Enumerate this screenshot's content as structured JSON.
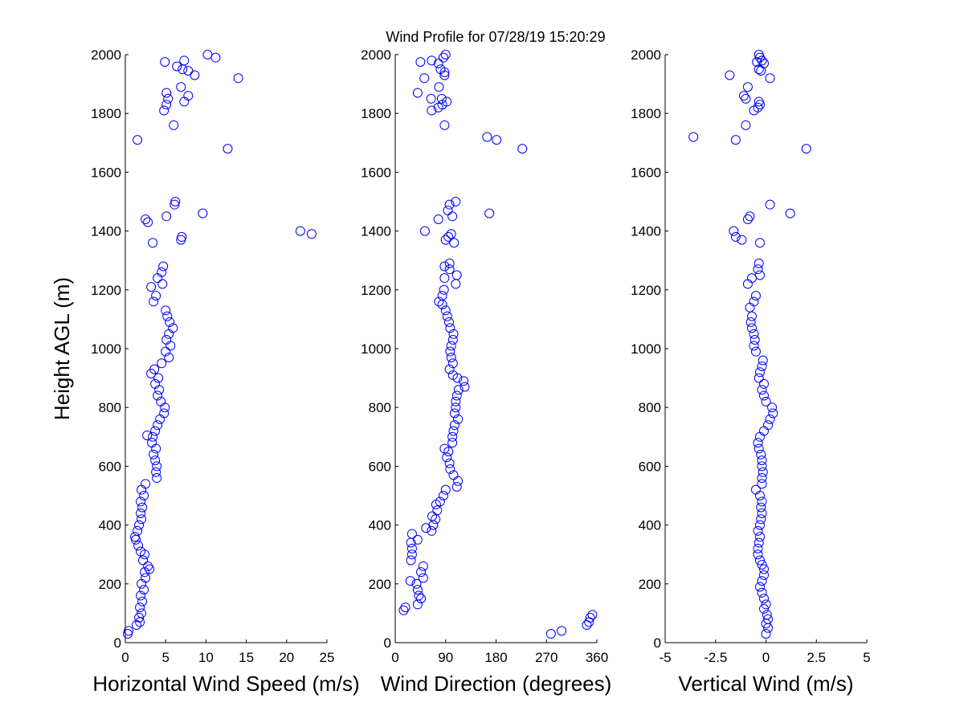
{
  "figure": {
    "title": "Wind Profile for  07/28/19 15:20:29",
    "marker_color": "#0000ff"
  },
  "chart_data": [
    {
      "type": "scatter",
      "id": "speed",
      "xlabel": "Horizontal Wind Speed (m/s)",
      "ylabel": "Height AGL (m)",
      "xlim": [
        0,
        25
      ],
      "ylim": [
        0,
        2000
      ],
      "xticks": [
        0,
        5,
        10,
        15,
        20,
        25
      ],
      "xtick_labels": [
        "0",
        "5",
        "10",
        "15",
        "20",
        "25"
      ],
      "yticks": [
        0,
        200,
        400,
        600,
        800,
        1000,
        1200,
        1400,
        1600,
        1800,
        2000
      ],
      "ytick_labels": [
        "0",
        "200",
        "400",
        "600",
        "800",
        "1000",
        "1200",
        "1400",
        "1600",
        "1800",
        "2000"
      ],
      "grid": false,
      "points": [
        [
          0.3,
          30
        ],
        [
          0.4,
          40
        ],
        [
          1.4,
          60
        ],
        [
          1.8,
          70
        ],
        [
          1.7,
          85
        ],
        [
          2.0,
          100
        ],
        [
          1.8,
          120
        ],
        [
          2.1,
          140
        ],
        [
          1.9,
          160
        ],
        [
          2.3,
          180
        ],
        [
          2.0,
          200
        ],
        [
          2.5,
          220
        ],
        [
          2.4,
          240
        ],
        [
          3.0,
          250
        ],
        [
          2.8,
          260
        ],
        [
          2.2,
          280
        ],
        [
          2.4,
          300
        ],
        [
          1.9,
          310
        ],
        [
          1.6,
          330
        ],
        [
          1.3,
          350
        ],
        [
          1.2,
          360
        ],
        [
          1.5,
          380
        ],
        [
          1.7,
          400
        ],
        [
          2.0,
          420
        ],
        [
          1.9,
          440
        ],
        [
          2.1,
          460
        ],
        [
          1.9,
          480
        ],
        [
          2.3,
          500
        ],
        [
          2.0,
          520
        ],
        [
          2.5,
          540
        ],
        [
          3.9,
          560
        ],
        [
          3.8,
          580
        ],
        [
          3.9,
          600
        ],
        [
          3.7,
          620
        ],
        [
          3.5,
          640
        ],
        [
          3.8,
          660
        ],
        [
          3.3,
          680
        ],
        [
          3.4,
          700
        ],
        [
          2.7,
          705
        ],
        [
          3.7,
          720
        ],
        [
          4.0,
          740
        ],
        [
          4.3,
          760
        ],
        [
          4.8,
          780
        ],
        [
          4.9,
          800
        ],
        [
          4.4,
          820
        ],
        [
          4.0,
          840
        ],
        [
          4.2,
          860
        ],
        [
          3.7,
          880
        ],
        [
          4.1,
          900
        ],
        [
          3.2,
          915
        ],
        [
          3.6,
          930
        ],
        [
          4.5,
          950
        ],
        [
          5.4,
          970
        ],
        [
          5.0,
          990
        ],
        [
          5.6,
          1010
        ],
        [
          5.1,
          1030
        ],
        [
          5.4,
          1050
        ],
        [
          5.9,
          1070
        ],
        [
          5.5,
          1090
        ],
        [
          5.2,
          1110
        ],
        [
          5.0,
          1130
        ],
        [
          3.5,
          1160
        ],
        [
          3.8,
          1180
        ],
        [
          3.2,
          1210
        ],
        [
          4.6,
          1220
        ],
        [
          4.0,
          1240
        ],
        [
          4.5,
          1260
        ],
        [
          4.7,
          1280
        ],
        [
          3.4,
          1360
        ],
        [
          6.9,
          1370
        ],
        [
          7.0,
          1380
        ],
        [
          21.7,
          1400
        ],
        [
          23.1,
          1390
        ],
        [
          2.5,
          1440
        ],
        [
          2.8,
          1430
        ],
        [
          5.1,
          1450
        ],
        [
          9.6,
          1460
        ],
        [
          6.1,
          1490
        ],
        [
          6.2,
          1500
        ],
        [
          12.7,
          1680
        ],
        [
          1.5,
          1710
        ],
        [
          6.0,
          1760
        ],
        [
          4.8,
          1810
        ],
        [
          5.1,
          1830
        ],
        [
          7.3,
          1840
        ],
        [
          5.3,
          1850
        ],
        [
          7.8,
          1860
        ],
        [
          5.1,
          1870
        ],
        [
          6.9,
          1890
        ],
        [
          14.0,
          1920
        ],
        [
          8.6,
          1930
        ],
        [
          6.4,
          1960
        ],
        [
          7.8,
          1945
        ],
        [
          7.1,
          1950
        ],
        [
          4.9,
          1975
        ],
        [
          7.3,
          1980
        ],
        [
          10.2,
          2000
        ],
        [
          11.2,
          1990
        ]
      ]
    },
    {
      "type": "scatter",
      "id": "direction",
      "xlabel": "Wind Direction (degrees)",
      "ylabel": "",
      "xlim": [
        0,
        360
      ],
      "ylim": [
        0,
        2000
      ],
      "xticks": [
        0,
        90,
        180,
        270,
        360
      ],
      "xtick_labels": [
        "0",
        "90",
        "180",
        "270",
        "360"
      ],
      "yticks": [
        0,
        200,
        400,
        600,
        800,
        1000,
        1200,
        1400,
        1600,
        1800,
        2000
      ],
      "ytick_labels": [
        "0",
        "200",
        "400",
        "600",
        "800",
        "1000",
        "1200",
        "1400",
        "1600",
        "1800",
        "2000"
      ],
      "grid": false,
      "points": [
        [
          278,
          30
        ],
        [
          297,
          40
        ],
        [
          342,
          60
        ],
        [
          346,
          70
        ],
        [
          348,
          85
        ],
        [
          352,
          95
        ],
        [
          15,
          110
        ],
        [
          18,
          120
        ],
        [
          40,
          130
        ],
        [
          46,
          150
        ],
        [
          42,
          160
        ],
        [
          40,
          180
        ],
        [
          38,
          200
        ],
        [
          27,
          210
        ],
        [
          50,
          220
        ],
        [
          46,
          240
        ],
        [
          50,
          260
        ],
        [
          28,
          280
        ],
        [
          30,
          300
        ],
        [
          30,
          320
        ],
        [
          28,
          340
        ],
        [
          40,
          350
        ],
        [
          30,
          370
        ],
        [
          55,
          390
        ],
        [
          65,
          380
        ],
        [
          68,
          400
        ],
        [
          72,
          420
        ],
        [
          66,
          430
        ],
        [
          75,
          450
        ],
        [
          73,
          470
        ],
        [
          80,
          480
        ],
        [
          86,
          500
        ],
        [
          90,
          520
        ],
        [
          110,
          530
        ],
        [
          112,
          550
        ],
        [
          104,
          570
        ],
        [
          98,
          590
        ],
        [
          97,
          610
        ],
        [
          92,
          630
        ],
        [
          95,
          650
        ],
        [
          88,
          660
        ],
        [
          102,
          680
        ],
        [
          102,
          700
        ],
        [
          104,
          720
        ],
        [
          106,
          740
        ],
        [
          112,
          760
        ],
        [
          106,
          780
        ],
        [
          108,
          800
        ],
        [
          108,
          820
        ],
        [
          110,
          840
        ],
        [
          113,
          860
        ],
        [
          124,
          870
        ],
        [
          122,
          890
        ],
        [
          111,
          900
        ],
        [
          103,
          910
        ],
        [
          97,
          930
        ],
        [
          103,
          950
        ],
        [
          100,
          970
        ],
        [
          98,
          990
        ],
        [
          100,
          1010
        ],
        [
          103,
          1030
        ],
        [
          104,
          1050
        ],
        [
          98,
          1070
        ],
        [
          96,
          1090
        ],
        [
          93,
          1110
        ],
        [
          90,
          1130
        ],
        [
          84,
          1150
        ],
        [
          78,
          1160
        ],
        [
          84,
          1180
        ],
        [
          87,
          1200
        ],
        [
          108,
          1220
        ],
        [
          88,
          1240
        ],
        [
          110,
          1250
        ],
        [
          97,
          1270
        ],
        [
          88,
          1280
        ],
        [
          97,
          1290
        ],
        [
          105,
          1360
        ],
        [
          90,
          1370
        ],
        [
          95,
          1380
        ],
        [
          100,
          1390
        ],
        [
          53,
          1400
        ],
        [
          77,
          1440
        ],
        [
          102,
          1450
        ],
        [
          94,
          1470
        ],
        [
          97,
          1490
        ],
        [
          108,
          1500
        ],
        [
          168,
          1460
        ],
        [
          164,
          1720
        ],
        [
          181,
          1710
        ],
        [
          227,
          1680
        ],
        [
          88,
          1760
        ],
        [
          65,
          1810
        ],
        [
          77,
          1820
        ],
        [
          84,
          1830
        ],
        [
          92,
          1840
        ],
        [
          83,
          1850
        ],
        [
          64,
          1850
        ],
        [
          40,
          1870
        ],
        [
          78,
          1890
        ],
        [
          52,
          1920
        ],
        [
          88,
          1930
        ],
        [
          88,
          1940
        ],
        [
          81,
          1950
        ],
        [
          77,
          1970
        ],
        [
          45,
          1975
        ],
        [
          65,
          1980
        ],
        [
          86,
          1990
        ],
        [
          90,
          2000
        ]
      ]
    },
    {
      "type": "scatter",
      "id": "vertical",
      "xlabel": "Vertical Wind (m/s)",
      "ylabel": "",
      "xlim": [
        -5,
        5
      ],
      "ylim": [
        0,
        2000
      ],
      "xticks": [
        -5,
        -2.5,
        0,
        2.5,
        5
      ],
      "xtick_labels": [
        "-5",
        "-2.5",
        "0",
        "2.5",
        "5"
      ],
      "yticks": [
        0,
        200,
        400,
        600,
        800,
        1000,
        1200,
        1400,
        1600,
        1800,
        2000
      ],
      "ytick_labels": [
        "0",
        "200",
        "400",
        "600",
        "800",
        "1000",
        "1200",
        "1400",
        "1600",
        "1800",
        "2000"
      ],
      "grid": false,
      "points": [
        [
          0.0,
          30
        ],
        [
          0.1,
          50
        ],
        [
          0.0,
          65
        ],
        [
          0.1,
          80
        ],
        [
          0.05,
          95
        ],
        [
          -0.1,
          115
        ],
        [
          0.0,
          130
        ],
        [
          -0.1,
          150
        ],
        [
          -0.2,
          170
        ],
        [
          -0.3,
          190
        ],
        [
          -0.2,
          210
        ],
        [
          -0.1,
          230
        ],
        [
          -0.1,
          250
        ],
        [
          -0.2,
          265
        ],
        [
          -0.3,
          280
        ],
        [
          -0.4,
          300
        ],
        [
          -0.4,
          320
        ],
        [
          -0.35,
          340
        ],
        [
          -0.3,
          360
        ],
        [
          -0.4,
          380
        ],
        [
          -0.3,
          400
        ],
        [
          -0.25,
          420
        ],
        [
          -0.2,
          440
        ],
        [
          -0.25,
          460
        ],
        [
          -0.2,
          480
        ],
        [
          -0.3,
          500
        ],
        [
          -0.5,
          520
        ],
        [
          -0.2,
          540
        ],
        [
          -0.2,
          560
        ],
        [
          -0.15,
          580
        ],
        [
          -0.2,
          600
        ],
        [
          -0.2,
          620
        ],
        [
          -0.25,
          640
        ],
        [
          -0.35,
          660
        ],
        [
          -0.4,
          680
        ],
        [
          -0.3,
          700
        ],
        [
          -0.1,
          720
        ],
        [
          0.1,
          740
        ],
        [
          0.2,
          760
        ],
        [
          0.35,
          780
        ],
        [
          0.3,
          800
        ],
        [
          0.0,
          820
        ],
        [
          -0.1,
          840
        ],
        [
          -0.2,
          860
        ],
        [
          -0.1,
          880
        ],
        [
          -0.35,
          900
        ],
        [
          -0.3,
          920
        ],
        [
          -0.2,
          940
        ],
        [
          -0.15,
          960
        ],
        [
          -0.5,
          990
        ],
        [
          -0.6,
          1010
        ],
        [
          -0.55,
          1030
        ],
        [
          -0.6,
          1050
        ],
        [
          -0.7,
          1070
        ],
        [
          -0.75,
          1090
        ],
        [
          -0.7,
          1110
        ],
        [
          -0.8,
          1140
        ],
        [
          -0.6,
          1160
        ],
        [
          -0.5,
          1180
        ],
        [
          -0.9,
          1220
        ],
        [
          -0.7,
          1240
        ],
        [
          -0.3,
          1250
        ],
        [
          -0.4,
          1270
        ],
        [
          -0.35,
          1290
        ],
        [
          -0.3,
          1360
        ],
        [
          -1.6,
          1400
        ],
        [
          -1.5,
          1380
        ],
        [
          -1.2,
          1370
        ],
        [
          -0.9,
          1440
        ],
        [
          -0.8,
          1450
        ],
        [
          1.2,
          1460
        ],
        [
          0.2,
          1490
        ],
        [
          2.0,
          1680
        ],
        [
          -3.6,
          1720
        ],
        [
          -1.5,
          1710
        ],
        [
          -1.0,
          1760
        ],
        [
          -0.6,
          1810
        ],
        [
          -0.4,
          1820
        ],
        [
          -0.3,
          1830
        ],
        [
          -0.35,
          1840
        ],
        [
          -1.0,
          1850
        ],
        [
          -1.1,
          1860
        ],
        [
          -0.9,
          1890
        ],
        [
          -1.8,
          1930
        ],
        [
          0.2,
          1920
        ],
        [
          -0.25,
          1945
        ],
        [
          -0.35,
          1950
        ],
        [
          -0.1,
          1970
        ],
        [
          -0.45,
          1975
        ],
        [
          -0.2,
          1980
        ],
        [
          -0.3,
          1990
        ],
        [
          -0.35,
          2000
        ]
      ]
    }
  ]
}
